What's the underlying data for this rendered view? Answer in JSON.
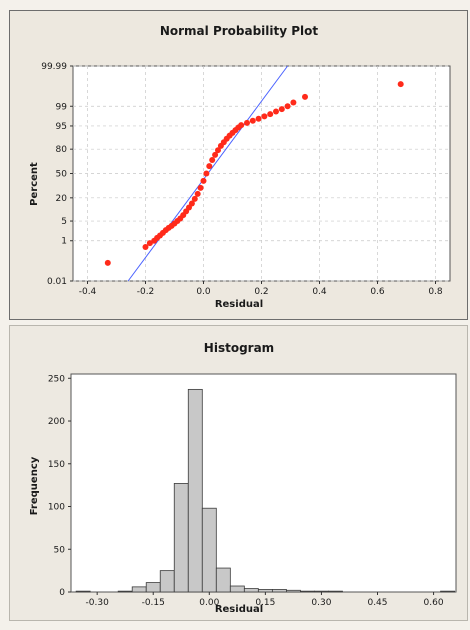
{
  "colors": {
    "points": "#ff2a1a",
    "fit_line": "#4a62ff",
    "bars": "#c8c8c8",
    "bar_border": "#3a3a3a",
    "plot_bg": "#ffffff",
    "panel_bg": "#ede8df",
    "grid": "#c8c8c8"
  },
  "chart_data": [
    {
      "type": "scatter",
      "title": "Normal Probability Plot",
      "xlabel": "Residual",
      "ylabel": "Percent",
      "xlim": [
        -0.45,
        0.85
      ],
      "x_ticks": [
        -0.4,
        -0.2,
        0.0,
        0.2,
        0.4,
        0.6,
        0.8
      ],
      "x_tick_labels": [
        "-0.4",
        "-0.2",
        "0.0",
        "0.2",
        "0.4",
        "0.6",
        "0.8"
      ],
      "y_scale": "normal-probability",
      "y_ticks": [
        0.01,
        1,
        5,
        20,
        50,
        80,
        95,
        99,
        99.99
      ],
      "y_tick_labels": [
        "0.01",
        "1",
        "5",
        "20",
        "50",
        "80",
        "95",
        "99",
        "99.99"
      ],
      "grid": true,
      "fitted_line": {
        "x": [
          -0.26,
          0.29
        ],
        "y": [
          0.01,
          99.99
        ]
      },
      "series": [
        {
          "points": [
            [
              -0.33,
              0.1
            ],
            [
              -0.2,
              0.55
            ],
            [
              -0.185,
              0.8
            ],
            [
              -0.17,
              1.0
            ],
            [
              -0.16,
              1.3
            ],
            [
              -0.15,
              1.6
            ],
            [
              -0.14,
              2.0
            ],
            [
              -0.13,
              2.5
            ],
            [
              -0.12,
              3.0
            ],
            [
              -0.11,
              3.5
            ],
            [
              -0.1,
              4.2
            ],
            [
              -0.09,
              5.0
            ],
            [
              -0.08,
              6.0
            ],
            [
              -0.07,
              7.5
            ],
            [
              -0.06,
              9.5
            ],
            [
              -0.05,
              12.0
            ],
            [
              -0.04,
              15.0
            ],
            [
              -0.03,
              19.0
            ],
            [
              -0.02,
              24.0
            ],
            [
              -0.01,
              31.0
            ],
            [
              0.0,
              40.0
            ],
            [
              0.01,
              50.0
            ],
            [
              0.02,
              60.0
            ],
            [
              0.03,
              68.0
            ],
            [
              0.04,
              74.0
            ],
            [
              0.05,
              79.0
            ],
            [
              0.06,
              83.0
            ],
            [
              0.07,
              86.0
            ],
            [
              0.08,
              88.5
            ],
            [
              0.09,
              90.5
            ],
            [
              0.1,
              92.0
            ],
            [
              0.11,
              93.3
            ],
            [
              0.12,
              94.4
            ],
            [
              0.13,
              95.3
            ],
            [
              0.15,
              96.0
            ],
            [
              0.17,
              96.6
            ],
            [
              0.19,
              97.1
            ],
            [
              0.21,
              97.6
            ],
            [
              0.23,
              98.0
            ],
            [
              0.25,
              98.4
            ],
            [
              0.27,
              98.7
            ],
            [
              0.29,
              99.0
            ],
            [
              0.31,
              99.3
            ],
            [
              0.35,
              99.6
            ],
            [
              0.68,
              99.9
            ]
          ]
        }
      ]
    },
    {
      "type": "bar",
      "title": "Histogram",
      "xlabel": "Residual",
      "ylabel": "Frequency",
      "bin_width": 0.0375,
      "bin_centers": [
        -0.3375,
        -0.3,
        -0.2625,
        -0.225,
        -0.1875,
        -0.15,
        -0.1125,
        -0.075,
        -0.0375,
        0.0,
        0.0375,
        0.075,
        0.1125,
        0.15,
        0.1875,
        0.225,
        0.2625,
        0.3,
        0.3375,
        0.375,
        0.4125,
        0.45,
        0.4875,
        0.525,
        0.5625,
        0.6,
        0.6375
      ],
      "values": [
        1,
        0,
        0,
        1,
        6,
        11,
        25,
        127,
        237,
        98,
        28,
        7,
        4,
        3,
        3,
        2,
        1,
        1,
        1,
        0,
        0,
        0,
        0,
        0,
        0,
        0,
        1
      ],
      "xlim": [
        -0.37,
        0.66
      ],
      "ylim": [
        0,
        255
      ],
      "x_ticks": [
        -0.3,
        -0.15,
        0.0,
        0.15,
        0.3,
        0.45,
        0.6
      ],
      "x_tick_labels": [
        "-0.30",
        "-0.15",
        "0.00",
        "0.15",
        "0.30",
        "0.45",
        "0.60"
      ],
      "y_ticks": [
        0,
        50,
        100,
        150,
        200,
        250
      ],
      "y_tick_labels": [
        "0",
        "50",
        "100",
        "150",
        "200",
        "250"
      ],
      "grid": false
    }
  ]
}
